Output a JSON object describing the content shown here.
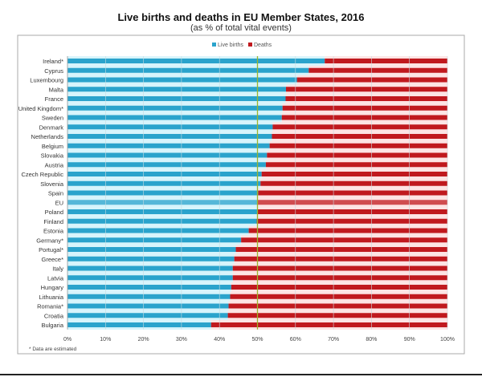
{
  "chart_data": {
    "type": "bar",
    "stacked": true,
    "orientation": "horizontal",
    "title": "Live births and deaths in EU Member States, 2016",
    "subtitle": "(as % of total vital events)",
    "xlabel": "",
    "ylabel": "",
    "xlim": [
      0,
      100
    ],
    "x_ticks": [
      "0%",
      "10%",
      "20%",
      "30%",
      "40%",
      "50%",
      "60%",
      "70%",
      "80%",
      "90%",
      "100%"
    ],
    "reference_line": 50,
    "legend": {
      "placement": "top-center",
      "entries": [
        "Live births",
        "Deaths"
      ]
    },
    "colors": {
      "Live births": "#2aa3cc",
      "Deaths": "#c0191e",
      "births_band": "#d6f4fb",
      "deaths_band": "#fde3e3",
      "reference": "#9bb52a"
    },
    "categories": [
      "Ireland*",
      "Cyprus",
      "Luxembourg",
      "Malta",
      "France",
      "United Kingdom*",
      "Sweden",
      "Denmark",
      "Netherlands",
      "Belgium",
      "Slovakia",
      "Austria",
      "Czech Republic",
      "Slovenia",
      "Spain",
      "EU",
      "Poland",
      "Finland",
      "Estonia",
      "Germany*",
      "Portugal*",
      "Greece*",
      "Italy",
      "Latvia",
      "Hungary",
      "Lithuania",
      "Romania*",
      "Croatia",
      "Bulgaria"
    ],
    "series": [
      {
        "name": "Live births",
        "values": [
          67.7,
          63.5,
          60.4,
          57.5,
          57.4,
          56.6,
          56.4,
          54.0,
          53.8,
          53.2,
          52.5,
          52.2,
          51.1,
          50.8,
          50.2,
          50.0,
          50.0,
          49.8,
          47.7,
          45.7,
          44.3,
          43.9,
          43.5,
          43.5,
          43.1,
          42.8,
          42.4,
          42.2,
          37.8
        ]
      },
      {
        "name": "Deaths",
        "values": [
          32.3,
          36.5,
          39.6,
          42.5,
          42.6,
          43.4,
          43.6,
          46.0,
          46.2,
          46.8,
          47.5,
          47.8,
          48.9,
          49.2,
          49.8,
          50.0,
          50.0,
          50.2,
          52.3,
          54.3,
          55.7,
          56.1,
          56.5,
          56.5,
          56.9,
          57.2,
          57.6,
          57.8,
          62.2
        ]
      }
    ],
    "footnote": "* Data are estimated"
  }
}
